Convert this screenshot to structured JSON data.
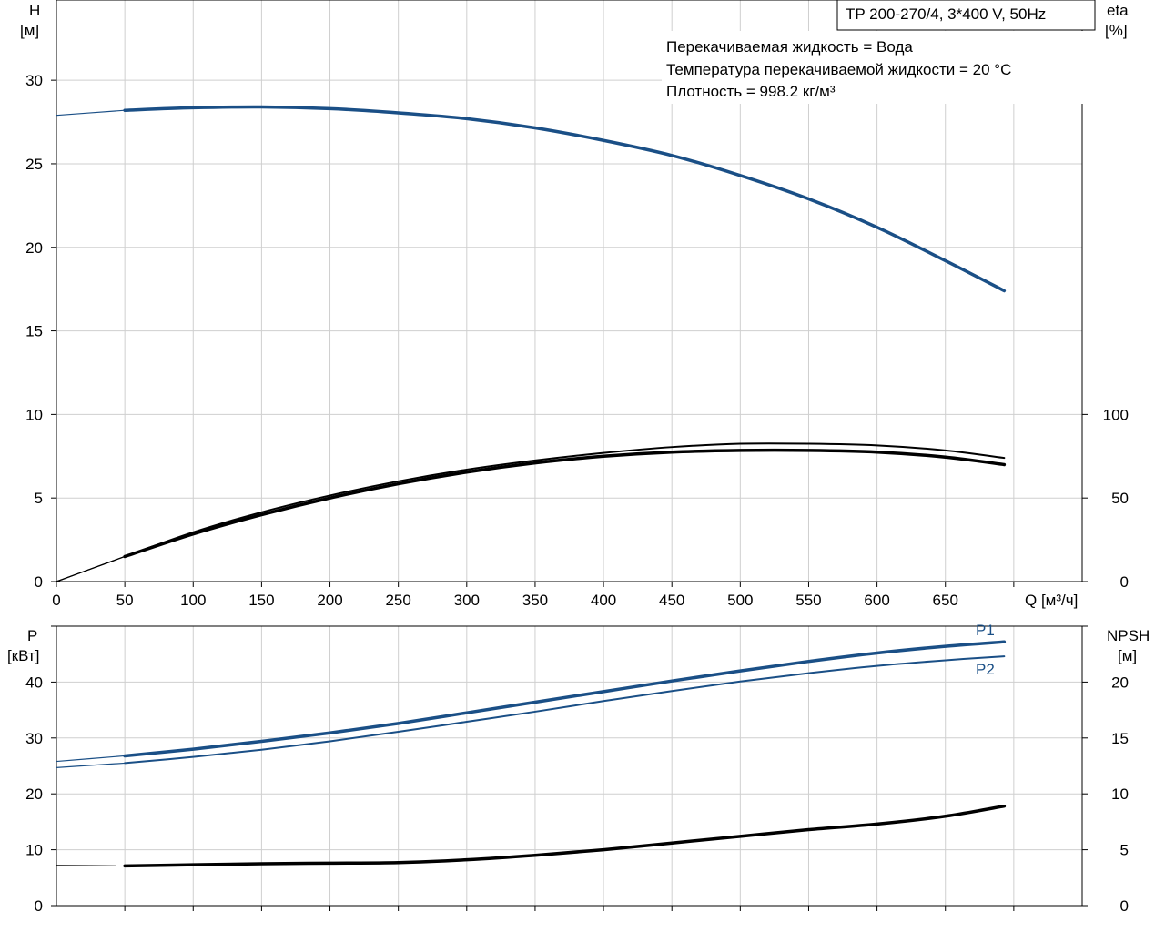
{
  "model_label": "TP 200-270/4, 3*400 V, 50Hz",
  "fluid_info": [
    "Перекачиваемая жидкость = Вода",
    "Температура перекачиваемой жидкости = 20 °C",
    "Плотность = 998.2 кг/м³"
  ],
  "colors": {
    "blue": "#1a4f86",
    "black": "#000000",
    "grid": "#cfcfcf"
  },
  "chart_data": [
    {
      "type": "line",
      "x_axis": {
        "label": "Q [м³/ч]",
        "ticks": [
          "0",
          "50",
          "100",
          "150",
          "200",
          "250",
          "300",
          "350",
          "400",
          "450",
          "500",
          "550",
          "600",
          "650"
        ],
        "range": [
          0,
          750
        ]
      },
      "y_axis_left": {
        "label_line1": "H",
        "label_line2": "[м]",
        "ticks": [
          "0",
          "5",
          "10",
          "15",
          "20",
          "25",
          "30"
        ],
        "range": [
          0,
          34.8
        ]
      },
      "y_axis_right": {
        "label_line1": "eta",
        "label_line2": "[%]",
        "ticks": [
          "0",
          "50",
          "100"
        ],
        "range": [
          0,
          100
        ]
      },
      "grid": true,
      "series": [
        {
          "name": "H",
          "axis": "left",
          "color": "#1a4f86",
          "x": [
            0,
            50,
            100,
            150,
            200,
            250,
            300,
            350,
            400,
            450,
            500,
            550,
            600,
            650,
            693
          ],
          "y": [
            27.9,
            28.2,
            28.35,
            28.4,
            28.3,
            28.05,
            27.7,
            27.15,
            26.4,
            25.5,
            24.3,
            22.9,
            21.2,
            19.2,
            17.4
          ]
        },
        {
          "name": "eta1",
          "axis": "right",
          "color": "#000000",
          "x": [
            0,
            50,
            100,
            150,
            200,
            250,
            300,
            350,
            400,
            450,
            500,
            550,
            600,
            650,
            693
          ],
          "y": [
            0,
            15,
            28.5,
            40,
            50,
            58.5,
            65.5,
            71,
            75,
            77.5,
            78.5,
            78.5,
            77.5,
            74.5,
            70
          ]
        },
        {
          "name": "eta2",
          "axis": "right",
          "color": "#000000",
          "x": [
            0,
            50,
            100,
            150,
            200,
            250,
            300,
            350,
            400,
            450,
            500,
            550,
            600,
            650,
            693
          ],
          "y": [
            0,
            15,
            29.5,
            41.5,
            51.5,
            60,
            67,
            72.5,
            77,
            80.5,
            82.5,
            82.5,
            81.5,
            78.5,
            74
          ]
        }
      ]
    },
    {
      "type": "line",
      "x_axis": {
        "ticks": [],
        "range": [
          0,
          750
        ]
      },
      "y_axis_left": {
        "label_line1": "P",
        "label_line2": "[кВт]",
        "ticks": [
          "0",
          "10",
          "20",
          "30",
          "40"
        ],
        "range": [
          0,
          50
        ]
      },
      "y_axis_right": {
        "label_line1": "NPSH",
        "label_line2": "[м]",
        "ticks": [
          "0",
          "5",
          "10",
          "15",
          "20"
        ],
        "range": [
          0,
          25
        ]
      },
      "grid": true,
      "series": [
        {
          "name": "P1",
          "axis": "left",
          "color": "#1a4f86",
          "x": [
            0,
            50,
            100,
            150,
            200,
            250,
            300,
            350,
            400,
            450,
            500,
            550,
            600,
            650,
            693
          ],
          "y": [
            25.8,
            26.8,
            28,
            29.4,
            30.9,
            32.6,
            34.5,
            36.4,
            38.3,
            40.2,
            42.0,
            43.7,
            45.2,
            46.4,
            47.2
          ]
        },
        {
          "name": "P2",
          "axis": "left",
          "color": "#1a4f86",
          "x": [
            0,
            50,
            100,
            150,
            200,
            250,
            300,
            350,
            400,
            450,
            500,
            550,
            600,
            650,
            693
          ],
          "y": [
            24.7,
            25.5,
            26.6,
            27.9,
            29.4,
            31.1,
            32.9,
            34.7,
            36.6,
            38.4,
            40.1,
            41.6,
            42.9,
            43.9,
            44.6
          ]
        },
        {
          "name": "NPSH",
          "axis": "right",
          "color": "#000000",
          "x": [
            0,
            50,
            100,
            150,
            200,
            250,
            300,
            350,
            400,
            450,
            500,
            550,
            600,
            650,
            693
          ],
          "y": [
            3.6,
            3.55,
            3.65,
            3.75,
            3.8,
            3.85,
            4.1,
            4.5,
            5.0,
            5.6,
            6.2,
            6.8,
            7.3,
            8.0,
            8.9
          ]
        }
      ]
    }
  ]
}
